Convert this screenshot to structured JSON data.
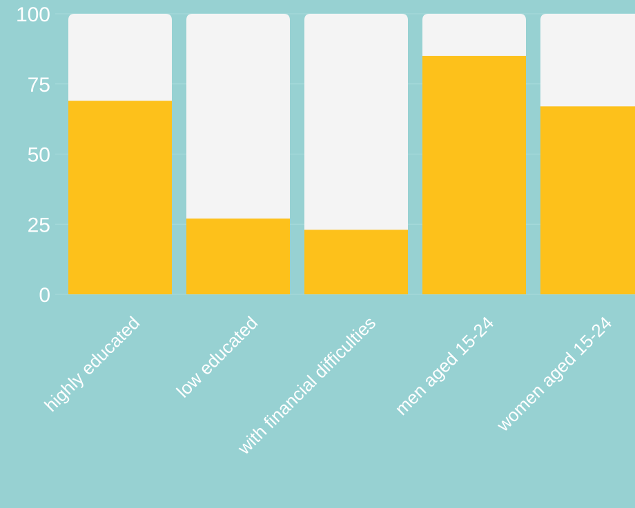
{
  "chart_data": {
    "type": "bar",
    "stacked_to": 100,
    "categories": [
      "highly educated",
      "low educated",
      "with financial difficulties",
      "men aged 15-24",
      "women aged 15-24"
    ],
    "values": [
      69,
      27,
      23,
      85,
      67
    ],
    "ylim": [
      0,
      100
    ],
    "yticks": [
      "0",
      "25",
      "50",
      "75",
      "100"
    ],
    "grid": true,
    "title": "",
    "xlabel": "",
    "ylabel": "",
    "colors": {
      "background": "#97d1d2",
      "value_fill": "#fdc11b",
      "remainder_fill": "#f4f4f4",
      "text": "#ffffff"
    }
  }
}
